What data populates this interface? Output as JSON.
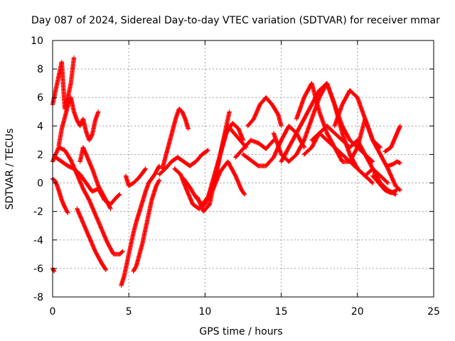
{
  "chart_data": {
    "type": "scatter",
    "title": "Day 087 of 2024, Sidereal Day-to-day VTEC variation (SDTVAR) for receiver mmar",
    "xlabel": "GPS time / hours",
    "ylabel": "SDTVAR / TECUs",
    "xlim": [
      0,
      25
    ],
    "ylim": [
      -8,
      10
    ],
    "xticks": [
      0,
      5,
      10,
      15,
      20,
      25
    ],
    "yticks": [
      -8,
      -6,
      -4,
      -2,
      0,
      2,
      4,
      6,
      8,
      10
    ],
    "grid": true,
    "marker": "+",
    "color": "#ff0000",
    "series": [
      {
        "name": "t1",
        "x": [
          0.0,
          0.2,
          0.4,
          0.6,
          0.8,
          1.0,
          1.2,
          1.4
        ],
        "y": [
          5.5,
          6.5,
          7.5,
          8.5,
          5.2,
          6.0,
          7.0,
          8.8
        ]
      },
      {
        "name": "t2",
        "x": [
          0.4,
          0.6,
          0.8,
          1.0,
          1.2,
          1.4,
          1.6,
          1.8,
          2.0,
          2.2,
          2.4,
          2.6,
          2.8,
          3.0
        ],
        "y": [
          2.6,
          3.8,
          4.6,
          5.4,
          6.0,
          5.0,
          4.4,
          4.0,
          4.5,
          3.6,
          3.0,
          3.4,
          4.4,
          5.0
        ]
      },
      {
        "name": "t3",
        "x": [
          0.0,
          0.2,
          0.4,
          0.6,
          0.8,
          1.0
        ],
        "y": [
          0.3,
          0.1,
          -0.5,
          -1.2,
          -1.7,
          -2.1
        ]
      },
      {
        "name": "t4",
        "x": [
          0.0,
          0.1
        ],
        "y": [
          -6.0,
          -6.2
        ]
      },
      {
        "name": "t5",
        "x": [
          0.0,
          0.4,
          0.8,
          1.2,
          1.6,
          2.0,
          2.4,
          2.8,
          3.2,
          3.6,
          4.0,
          4.4,
          4.6
        ],
        "y": [
          1.5,
          2.5,
          2.3,
          1.6,
          0.6,
          -0.4,
          -1.2,
          -2.2,
          -3.2,
          -4.2,
          -5.0,
          -5.0,
          -4.8
        ]
      },
      {
        "name": "t6",
        "x": [
          0.2,
          0.6,
          1.0,
          1.4,
          1.8,
          2.2,
          2.6,
          3.0,
          3.4,
          3.8,
          4.2,
          4.4
        ],
        "y": [
          1.8,
          1.5,
          1.2,
          1.0,
          0.6,
          0.0,
          -0.6,
          -0.4,
          -1.2,
          -1.5,
          -1.0,
          -0.8
        ]
      },
      {
        "name": "t7",
        "x": [
          1.6,
          2.0,
          2.4,
          2.8,
          3.2,
          3.5
        ],
        "y": [
          -1.8,
          -2.8,
          -3.8,
          -4.8,
          -5.6,
          -6.1
        ]
      },
      {
        "name": "t8",
        "x": [
          1.8,
          2.0,
          2.2,
          2.6,
          3.0,
          3.4,
          3.8
        ],
        "y": [
          1.5,
          2.5,
          2.0,
          1.0,
          -0.2,
          -1.0,
          -1.8
        ]
      },
      {
        "name": "t9",
        "x": [
          4.5,
          4.7,
          4.9,
          5.1,
          5.3,
          5.5,
          5.7,
          5.9,
          6.1,
          6.3,
          6.5,
          6.7,
          6.9,
          7.0
        ],
        "y": [
          -7.2,
          -6.5,
          -5.5,
          -4.5,
          -3.5,
          -2.7,
          -2.0,
          -1.3,
          -0.6,
          0.0,
          0.3,
          0.6,
          1.0,
          1.2
        ]
      },
      {
        "name": "t10",
        "x": [
          5.3,
          5.5,
          5.7,
          5.9,
          6.1,
          6.3,
          6.5,
          6.8,
          7.0
        ],
        "y": [
          -6.2,
          -5.8,
          -5.0,
          -4.2,
          -3.2,
          -2.2,
          -1.2,
          -0.2,
          0.2
        ]
      },
      {
        "name": "t11",
        "x": [
          4.8,
          5.0,
          5.3,
          5.6,
          5.9,
          6.1
        ],
        "y": [
          0.5,
          -0.2,
          0.0,
          0.3,
          0.7,
          1.0
        ]
      },
      {
        "name": "t12",
        "x": [
          7.2,
          7.5,
          7.8,
          8.1,
          8.3,
          8.5,
          8.7,
          8.9
        ],
        "y": [
          1.0,
          2.2,
          3.4,
          4.6,
          5.2,
          5.0,
          4.5,
          3.8
        ]
      },
      {
        "name": "t13",
        "x": [
          7.0,
          7.4,
          7.8,
          8.2,
          8.6,
          9.0,
          9.4,
          9.8,
          10.2
        ],
        "y": [
          0.6,
          1.0,
          1.5,
          1.8,
          1.5,
          1.2,
          1.5,
          2.0,
          2.3
        ]
      },
      {
        "name": "t14",
        "x": [
          8.0,
          8.4,
          8.8,
          9.2,
          9.6,
          10.0,
          10.4,
          10.8,
          11.2,
          11.6
        ],
        "y": [
          1.0,
          0.6,
          -0.5,
          -1.5,
          -1.8,
          -1.5,
          -0.5,
          1.0,
          3.0,
          5.0
        ]
      },
      {
        "name": "t15",
        "x": [
          8.6,
          9.0,
          9.4,
          9.8,
          10.2,
          10.6,
          11.0,
          11.4,
          11.8,
          12.2,
          12.5
        ],
        "y": [
          0.3,
          -0.3,
          -1.0,
          -1.5,
          -1.0,
          0.5,
          2.0,
          3.5,
          4.2,
          3.8,
          3.0
        ]
      },
      {
        "name": "t16",
        "x": [
          9.5,
          9.9,
          10.3,
          10.7,
          11.1,
          11.5,
          11.9,
          12.3,
          12.7
        ],
        "y": [
          -1.0,
          -2.0,
          -1.5,
          0.5,
          2.5,
          4.0,
          3.5,
          3.0,
          2.5
        ]
      },
      {
        "name": "t17",
        "x": [
          10.5,
          11.0,
          11.5,
          12.0,
          12.4,
          12.6
        ],
        "y": [
          -0.5,
          0.8,
          1.5,
          0.5,
          -0.5,
          -0.8
        ]
      },
      {
        "name": "t18",
        "x": [
          12.0,
          12.5,
          13.0,
          13.5,
          14.0,
          14.5
        ],
        "y": [
          1.8,
          2.4,
          3.0,
          2.8,
          2.4,
          3.0
        ]
      },
      {
        "name": "t19",
        "x": [
          12.8,
          13.2,
          13.6,
          14.0,
          14.4,
          14.8,
          15.0
        ],
        "y": [
          4.0,
          4.5,
          5.5,
          6.0,
          5.5,
          4.8,
          4.0
        ]
      },
      {
        "name": "t20",
        "x": [
          12.5,
          13.0,
          13.5,
          14.0,
          14.5,
          15.0,
          15.5,
          16.0,
          16.5
        ],
        "y": [
          2.0,
          1.6,
          1.2,
          1.2,
          1.8,
          3.0,
          4.0,
          3.5,
          2.5
        ]
      },
      {
        "name": "t21",
        "x": [
          14.5,
          15.0,
          15.5,
          16.0,
          16.5,
          17.0,
          17.5,
          18.0,
          18.5,
          19.0,
          19.5,
          20.0
        ],
        "y": [
          3.5,
          2.0,
          1.5,
          2.0,
          3.0,
          4.5,
          6.0,
          7.0,
          5.5,
          3.5,
          2.0,
          1.0
        ]
      },
      {
        "name": "t22",
        "x": [
          15.0,
          15.5,
          16.0,
          16.5,
          17.0,
          17.5,
          18.0,
          18.5,
          19.0,
          19.5,
          20.0,
          20.5,
          21.0
        ],
        "y": [
          1.5,
          2.5,
          3.5,
          4.5,
          5.5,
          6.5,
          7.0,
          5.5,
          4.0,
          3.0,
          2.5,
          2.0,
          1.5
        ]
      },
      {
        "name": "t23",
        "x": [
          16.0,
          16.5,
          17.0,
          17.5,
          18.0,
          18.5,
          19.0,
          19.5,
          20.0,
          20.5,
          21.0,
          21.5,
          22.0,
          22.5,
          22.8
        ],
        "y": [
          4.5,
          6.0,
          7.0,
          5.0,
          3.5,
          2.5,
          1.5,
          1.5,
          2.5,
          4.5,
          3.0,
          2.0,
          1.0,
          -0.2,
          -0.5
        ]
      },
      {
        "name": "t24",
        "x": [
          16.5,
          17.0,
          17.5,
          18.0,
          18.5,
          19.0,
          19.5,
          20.0,
          20.5,
          21.0
        ],
        "y": [
          2.0,
          2.5,
          3.5,
          3.0,
          2.5,
          2.0,
          1.5,
          1.0,
          0.5,
          0.0
        ]
      },
      {
        "name": "t25",
        "x": [
          17.0,
          17.5,
          18.0,
          18.5,
          19.0,
          19.5,
          20.0,
          20.5,
          21.0,
          21.5,
          22.0
        ],
        "y": [
          3.0,
          3.5,
          4.0,
          3.5,
          3.0,
          2.5,
          3.0,
          2.0,
          1.0,
          0.5,
          0.0
        ]
      },
      {
        "name": "t26",
        "x": [
          18.5,
          19.0,
          19.5,
          20.0,
          20.5,
          21.0,
          21.5
        ],
        "y": [
          4.0,
          5.5,
          6.5,
          6.0,
          4.5,
          3.0,
          2.5
        ]
      },
      {
        "name": "t27",
        "x": [
          19.5,
          20.0,
          20.5,
          21.0,
          21.5,
          22.0,
          22.5
        ],
        "y": [
          2.0,
          1.0,
          0.5,
          1.0,
          0.0,
          -0.5,
          -0.8
        ]
      },
      {
        "name": "t28",
        "x": [
          21.0,
          21.4,
          21.8,
          22.2,
          22.6
        ],
        "y": [
          0.5,
          0.0,
          -0.5,
          -0.7,
          -0.5
        ]
      },
      {
        "name": "t29",
        "x": [
          21.8,
          22.2,
          22.4,
          22.6,
          22.8
        ],
        "y": [
          2.2,
          2.5,
          3.0,
          3.5,
          4.0
        ]
      },
      {
        "name": "t30",
        "x": [
          22.0,
          22.3,
          22.6,
          22.8
        ],
        "y": [
          1.2,
          1.3,
          1.5,
          1.4
        ]
      }
    ]
  }
}
